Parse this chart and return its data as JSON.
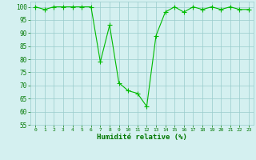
{
  "x": [
    0,
    1,
    2,
    3,
    4,
    5,
    6,
    7,
    8,
    9,
    10,
    11,
    12,
    13,
    14,
    15,
    16,
    17,
    18,
    19,
    20,
    21,
    22,
    23
  ],
  "y": [
    100,
    99,
    100,
    100,
    100,
    100,
    100,
    79,
    93,
    71,
    68,
    67,
    62,
    89,
    98,
    100,
    98,
    100,
    99,
    100,
    99,
    100,
    99,
    99
  ],
  "line_color": "#00bb00",
  "marker": "+",
  "marker_color": "#00bb00",
  "bg_color": "#d4f0f0",
  "grid_color": "#99cccc",
  "xlabel": "Humidité relative (%)",
  "xlabel_color": "#007700",
  "tick_color": "#007700",
  "ylim": [
    55,
    102
  ],
  "xlim": [
    -0.5,
    23.5
  ],
  "yticks": [
    55,
    60,
    65,
    70,
    75,
    80,
    85,
    90,
    95,
    100
  ],
  "xticks": [
    0,
    1,
    2,
    3,
    4,
    5,
    6,
    7,
    8,
    9,
    10,
    11,
    12,
    13,
    14,
    15,
    16,
    17,
    18,
    19,
    20,
    21,
    22,
    23
  ],
  "xtick_labels": [
    "0",
    "1",
    "2",
    "3",
    "4",
    "5",
    "6",
    "7",
    "8",
    "9",
    "10",
    "11",
    "12",
    "13",
    "14",
    "15",
    "16",
    "17",
    "18",
    "19",
    "20",
    "21",
    "22",
    "23"
  ],
  "linewidth": 0.8,
  "markersize": 4
}
